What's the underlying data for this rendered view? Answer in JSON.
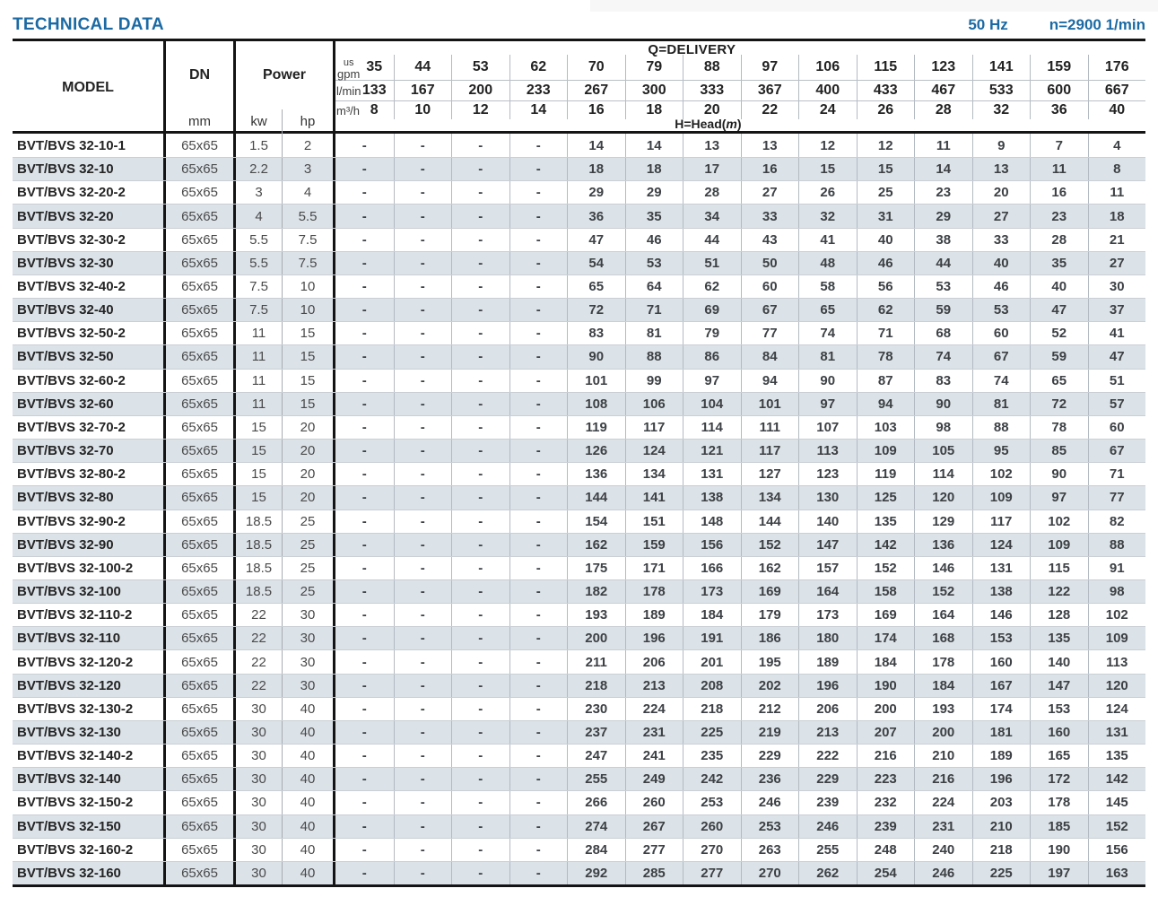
{
  "page": {
    "title": "TECHNICAL DATA",
    "frequency": "50 Hz",
    "speed": "n=2900 1/min"
  },
  "table": {
    "headers": {
      "model": "MODEL",
      "dn": "DN",
      "dn_unit": "mm",
      "power": "Power",
      "power_kw": "kw",
      "power_hp": "hp",
      "delivery_title": "Q=DELIVERY",
      "head_label_prefix": "H=Head(",
      "head_label_m": "m",
      "head_label_suffix": ")"
    },
    "delivery_units": {
      "us_gpm_top": "us",
      "us_gpm_bottom": "gpm",
      "l_min": "l/min",
      "m3_h": "m³/h"
    },
    "delivery_values": {
      "us_gpm": [
        35,
        44,
        53,
        62,
        70,
        79,
        88,
        97,
        106,
        115,
        123,
        141,
        159,
        176
      ],
      "l_min": [
        133,
        167,
        200,
        233,
        267,
        300,
        333,
        367,
        400,
        433,
        467,
        533,
        600,
        667
      ],
      "m3_h": [
        8,
        10,
        12,
        14,
        16,
        18,
        20,
        22,
        24,
        26,
        28,
        32,
        36,
        40
      ]
    },
    "rows": [
      {
        "model": "BVT/BVS 32-10-1",
        "dn": "65x65",
        "kw": "1.5",
        "hp": "2",
        "head": [
          "-",
          "-",
          "-",
          "-",
          14,
          14,
          13,
          13,
          12,
          12,
          11,
          9,
          7,
          4
        ]
      },
      {
        "model": "BVT/BVS 32-10",
        "dn": "65x65",
        "kw": "2.2",
        "hp": "3",
        "head": [
          "-",
          "-",
          "-",
          "-",
          18,
          18,
          17,
          16,
          15,
          15,
          14,
          13,
          11,
          8
        ]
      },
      {
        "model": "BVT/BVS 32-20-2",
        "dn": "65x65",
        "kw": "3",
        "hp": "4",
        "head": [
          "-",
          "-",
          "-",
          "-",
          29,
          29,
          28,
          27,
          26,
          25,
          23,
          20,
          16,
          11
        ]
      },
      {
        "model": "BVT/BVS 32-20",
        "dn": "65x65",
        "kw": "4",
        "hp": "5.5",
        "head": [
          "-",
          "-",
          "-",
          "-",
          36,
          35,
          34,
          33,
          32,
          31,
          29,
          27,
          23,
          18
        ]
      },
      {
        "model": "BVT/BVS 32-30-2",
        "dn": "65x65",
        "kw": "5.5",
        "hp": "7.5",
        "head": [
          "-",
          "-",
          "-",
          "-",
          47,
          46,
          44,
          43,
          41,
          40,
          38,
          33,
          28,
          21
        ]
      },
      {
        "model": "BVT/BVS 32-30",
        "dn": "65x65",
        "kw": "5.5",
        "hp": "7.5",
        "head": [
          "-",
          "-",
          "-",
          "-",
          54,
          53,
          51,
          50,
          48,
          46,
          44,
          40,
          35,
          27
        ]
      },
      {
        "model": "BVT/BVS 32-40-2",
        "dn": "65x65",
        "kw": "7.5",
        "hp": "10",
        "head": [
          "-",
          "-",
          "-",
          "-",
          65,
          64,
          62,
          60,
          58,
          56,
          53,
          46,
          40,
          30
        ]
      },
      {
        "model": "BVT/BVS 32-40",
        "dn": "65x65",
        "kw": "7.5",
        "hp": "10",
        "head": [
          "-",
          "-",
          "-",
          "-",
          72,
          71,
          69,
          67,
          65,
          62,
          59,
          53,
          47,
          37
        ]
      },
      {
        "model": "BVT/BVS 32-50-2",
        "dn": "65x65",
        "kw": "11",
        "hp": "15",
        "head": [
          "-",
          "-",
          "-",
          "-",
          83,
          81,
          79,
          77,
          74,
          71,
          68,
          60,
          52,
          41
        ]
      },
      {
        "model": "BVT/BVS 32-50",
        "dn": "65x65",
        "kw": "11",
        "hp": "15",
        "head": [
          "-",
          "-",
          "-",
          "-",
          90,
          88,
          86,
          84,
          81,
          78,
          74,
          67,
          59,
          47
        ]
      },
      {
        "model": "BVT/BVS 32-60-2",
        "dn": "65x65",
        "kw": "11",
        "hp": "15",
        "head": [
          "-",
          "-",
          "-",
          "-",
          101,
          99,
          97,
          94,
          90,
          87,
          83,
          74,
          65,
          51
        ]
      },
      {
        "model": "BVT/BVS 32-60",
        "dn": "65x65",
        "kw": "11",
        "hp": "15",
        "head": [
          "-",
          "-",
          "-",
          "-",
          108,
          106,
          104,
          101,
          97,
          94,
          90,
          81,
          72,
          57
        ]
      },
      {
        "model": "BVT/BVS 32-70-2",
        "dn": "65x65",
        "kw": "15",
        "hp": "20",
        "head": [
          "-",
          "-",
          "-",
          "-",
          119,
          117,
          114,
          111,
          107,
          103,
          98,
          88,
          78,
          60
        ]
      },
      {
        "model": "BVT/BVS 32-70",
        "dn": "65x65",
        "kw": "15",
        "hp": "20",
        "head": [
          "-",
          "-",
          "-",
          "-",
          126,
          124,
          121,
          117,
          113,
          109,
          105,
          95,
          85,
          67
        ]
      },
      {
        "model": "BVT/BVS 32-80-2",
        "dn": "65x65",
        "kw": "15",
        "hp": "20",
        "head": [
          "-",
          "-",
          "-",
          "-",
          136,
          134,
          131,
          127,
          123,
          119,
          114,
          102,
          90,
          71
        ]
      },
      {
        "model": "BVT/BVS 32-80",
        "dn": "65x65",
        "kw": "15",
        "hp": "20",
        "head": [
          "-",
          "-",
          "-",
          "-",
          144,
          141,
          138,
          134,
          130,
          125,
          120,
          109,
          97,
          77
        ]
      },
      {
        "model": "BVT/BVS 32-90-2",
        "dn": "65x65",
        "kw": "18.5",
        "hp": "25",
        "head": [
          "-",
          "-",
          "-",
          "-",
          154,
          151,
          148,
          144,
          140,
          135,
          129,
          117,
          102,
          82
        ]
      },
      {
        "model": "BVT/BVS 32-90",
        "dn": "65x65",
        "kw": "18.5",
        "hp": "25",
        "head": [
          "-",
          "-",
          "-",
          "-",
          162,
          159,
          156,
          152,
          147,
          142,
          136,
          124,
          109,
          88
        ]
      },
      {
        "model": "BVT/BVS 32-100-2",
        "dn": "65x65",
        "kw": "18.5",
        "hp": "25",
        "head": [
          "-",
          "-",
          "-",
          "-",
          175,
          171,
          166,
          162,
          157,
          152,
          146,
          131,
          115,
          91
        ]
      },
      {
        "model": "BVT/BVS 32-100",
        "dn": "65x65",
        "kw": "18.5",
        "hp": "25",
        "head": [
          "-",
          "-",
          "-",
          "-",
          182,
          178,
          173,
          169,
          164,
          158,
          152,
          138,
          122,
          98
        ]
      },
      {
        "model": "BVT/BVS 32-110-2",
        "dn": "65x65",
        "kw": "22",
        "hp": "30",
        "head": [
          "-",
          "-",
          "-",
          "-",
          193,
          189,
          184,
          179,
          173,
          169,
          164,
          146,
          128,
          102
        ]
      },
      {
        "model": "BVT/BVS 32-110",
        "dn": "65x65",
        "kw": "22",
        "hp": "30",
        "head": [
          "-",
          "-",
          "-",
          "-",
          200,
          196,
          191,
          186,
          180,
          174,
          168,
          153,
          135,
          109
        ]
      },
      {
        "model": "BVT/BVS 32-120-2",
        "dn": "65x65",
        "kw": "22",
        "hp": "30",
        "head": [
          "-",
          "-",
          "-",
          "-",
          211,
          206,
          201,
          195,
          189,
          184,
          178,
          160,
          140,
          113
        ]
      },
      {
        "model": "BVT/BVS 32-120",
        "dn": "65x65",
        "kw": "22",
        "hp": "30",
        "head": [
          "-",
          "-",
          "-",
          "-",
          218,
          213,
          208,
          202,
          196,
          190,
          184,
          167,
          147,
          120
        ]
      },
      {
        "model": "BVT/BVS 32-130-2",
        "dn": "65x65",
        "kw": "30",
        "hp": "40",
        "head": [
          "-",
          "-",
          "-",
          "-",
          230,
          224,
          218,
          212,
          206,
          200,
          193,
          174,
          153,
          124
        ]
      },
      {
        "model": "BVT/BVS 32-130",
        "dn": "65x65",
        "kw": "30",
        "hp": "40",
        "head": [
          "-",
          "-",
          "-",
          "-",
          237,
          231,
          225,
          219,
          213,
          207,
          200,
          181,
          160,
          131
        ]
      },
      {
        "model": "BVT/BVS 32-140-2",
        "dn": "65x65",
        "kw": "30",
        "hp": "40",
        "head": [
          "-",
          "-",
          "-",
          "-",
          247,
          241,
          235,
          229,
          222,
          216,
          210,
          189,
          165,
          135
        ]
      },
      {
        "model": "BVT/BVS 32-140",
        "dn": "65x65",
        "kw": "30",
        "hp": "40",
        "head": [
          "-",
          "-",
          "-",
          "-",
          255,
          249,
          242,
          236,
          229,
          223,
          216,
          196,
          172,
          142
        ]
      },
      {
        "model": "BVT/BVS 32-150-2",
        "dn": "65x65",
        "kw": "30",
        "hp": "40",
        "head": [
          "-",
          "-",
          "-",
          "-",
          266,
          260,
          253,
          246,
          239,
          232,
          224,
          203,
          178,
          145
        ]
      },
      {
        "model": "BVT/BVS 32-150",
        "dn": "65x65",
        "kw": "30",
        "hp": "40",
        "head": [
          "-",
          "-",
          "-",
          "-",
          274,
          267,
          260,
          253,
          246,
          239,
          231,
          210,
          185,
          152
        ]
      },
      {
        "model": "BVT/BVS 32-160-2",
        "dn": "65x65",
        "kw": "30",
        "hp": "40",
        "head": [
          "-",
          "-",
          "-",
          "-",
          284,
          277,
          270,
          263,
          255,
          248,
          240,
          218,
          190,
          156
        ]
      },
      {
        "model": "BVT/BVS 32-160",
        "dn": "65x65",
        "kw": "30",
        "hp": "40",
        "head": [
          "-",
          "-",
          "-",
          "-",
          292,
          285,
          277,
          270,
          262,
          254,
          246,
          225,
          197,
          163
        ]
      }
    ]
  },
  "colors": {
    "accent_blue": "#1b6aa4",
    "row_stripe": "#dbe2e8",
    "border_dark": "#141414"
  }
}
